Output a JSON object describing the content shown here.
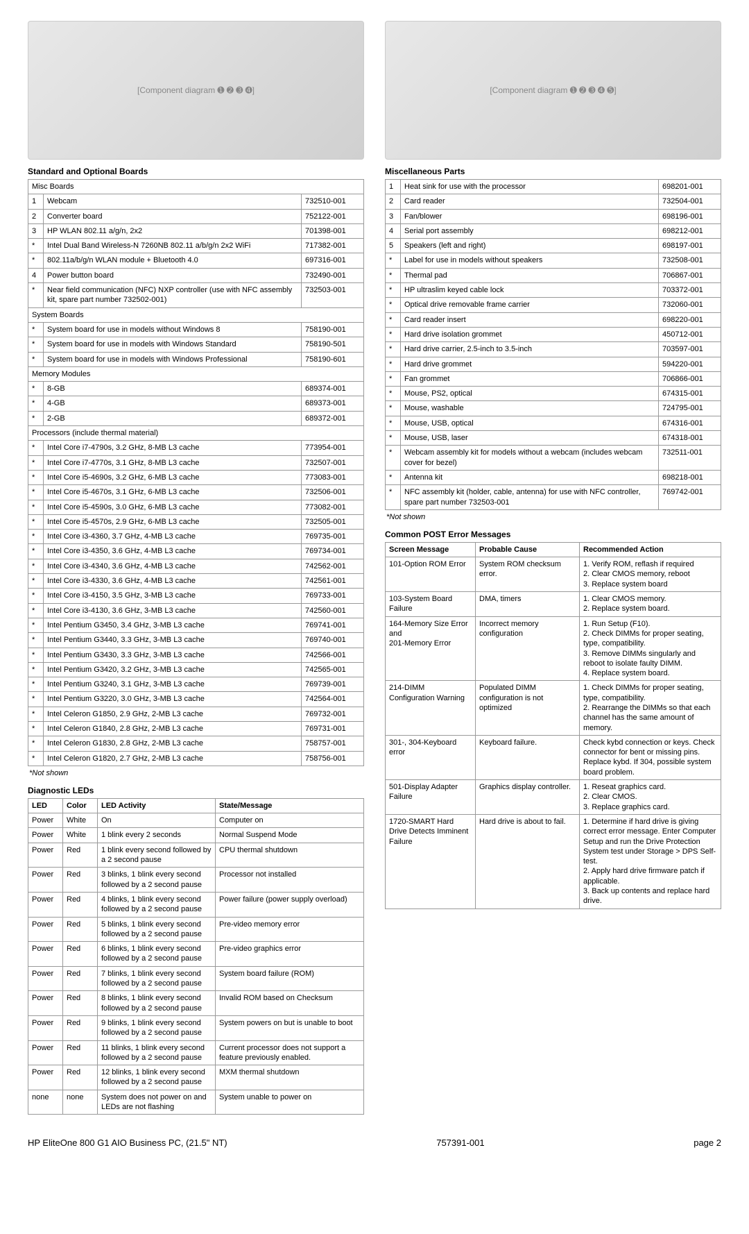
{
  "footer": {
    "left": "HP EliteOne 800 G1 AIO Business PC, (21.5\" NT)",
    "center": "757391-001",
    "right": "page 2"
  },
  "left": {
    "diagram_placeholder": "[Component diagram ➊ ➋ ➌ ➍]",
    "boards_title": "Standard and Optional Boards",
    "misc_header": "Misc Boards",
    "misc_rows": [
      [
        "1",
        "Webcam",
        "732510-001"
      ],
      [
        "2",
        "Converter board",
        "752122-001"
      ],
      [
        "3",
        "HP WLAN 802.11 a/g/n, 2x2",
        "701398-001"
      ],
      [
        "*",
        "Intel Dual Band Wireless-N 7260NB 802.11 a/b/g/n 2x2 WiFi",
        "717382-001"
      ],
      [
        "*",
        "802.11a/b/g/n WLAN module + Bluetooth 4.0",
        "697316-001"
      ],
      [
        "4",
        "Power button board",
        "732490-001"
      ],
      [
        "*",
        "Near field communication (NFC) NXP controller (use with NFC assembly kit, spare part number 732502-001)",
        "732503-001"
      ]
    ],
    "sys_header": "System Boards",
    "sys_rows": [
      [
        "*",
        "System board for use in models without Windows 8",
        "758190-001"
      ],
      [
        "*",
        "System board for use in models with Windows Standard",
        "758190-501"
      ],
      [
        "*",
        "System board for use in models with Windows Professional",
        "758190-601"
      ]
    ],
    "mem_header": "Memory Modules",
    "mem_rows": [
      [
        "*",
        "8-GB",
        "689374-001"
      ],
      [
        "*",
        "4-GB",
        "689373-001"
      ],
      [
        "*",
        "2-GB",
        "689372-001"
      ]
    ],
    "proc_header": "Processors (include thermal material)",
    "proc_rows": [
      [
        "*",
        "Intel Core i7-4790s, 3.2 GHz, 8-MB L3 cache",
        "773954-001"
      ],
      [
        "*",
        "Intel Core i7-4770s, 3.1 GHz, 8-MB L3 cache",
        "732507-001"
      ],
      [
        "*",
        "Intel Core i5-4690s, 3.2 GHz, 6-MB L3 cache",
        "773083-001"
      ],
      [
        "*",
        "Intel Core i5-4670s, 3.1 GHz, 6-MB L3 cache",
        "732506-001"
      ],
      [
        "*",
        "Intel Core i5-4590s, 3.0 GHz, 6-MB L3 cache",
        "773082-001"
      ],
      [
        "*",
        "Intel Core i5-4570s, 2.9 GHz, 6-MB L3 cache",
        "732505-001"
      ],
      [
        "*",
        "Intel Core i3-4360, 3.7 GHz, 4-MB L3 cache",
        "769735-001"
      ],
      [
        "*",
        "Intel Core i3-4350, 3.6 GHz, 4-MB L3 cache",
        "769734-001"
      ],
      [
        "*",
        "Intel Core i3-4340, 3.6 GHz, 4-MB L3 cache",
        "742562-001"
      ],
      [
        "*",
        "Intel Core i3-4330, 3.6 GHz, 4-MB L3 cache",
        "742561-001"
      ],
      [
        "*",
        "Intel Core i3-4150, 3.5 GHz, 3-MB L3 cache",
        "769733-001"
      ],
      [
        "*",
        "Intel Core i3-4130, 3.6 GHz, 3-MB L3 cache",
        "742560-001"
      ],
      [
        "*",
        "Intel Pentium G3450, 3.4 GHz, 3-MB L3 cache",
        "769741-001"
      ],
      [
        "*",
        "Intel Pentium G3440, 3.3 GHz, 3-MB L3 cache",
        "769740-001"
      ],
      [
        "*",
        "Intel Pentium G3430, 3.3 GHz, 3-MB L3 cache",
        "742566-001"
      ],
      [
        "*",
        "Intel Pentium G3420, 3.2 GHz, 3-MB L3 cache",
        "742565-001"
      ],
      [
        "*",
        "Intel Pentium G3240, 3.1 GHz, 3-MB L3 cache",
        "769739-001"
      ],
      [
        "*",
        "Intel Pentium G3220, 3.0 GHz, 3-MB L3 cache",
        "742564-001"
      ],
      [
        "*",
        "Intel Celeron G1850, 2.9 GHz, 2-MB L3 cache",
        "769732-001"
      ],
      [
        "*",
        "Intel Celeron G1840, 2.8 GHz, 2-MB L3 cache",
        "769731-001"
      ],
      [
        "*",
        "Intel Celeron G1830, 2.8 GHz, 2-MB L3 cache",
        "758757-001"
      ],
      [
        "*",
        "Intel Celeron G1820, 2.7 GHz, 2-MB L3 cache",
        "758756-001"
      ]
    ],
    "not_shown": "*Not shown",
    "leds_title": "Diagnostic LEDs",
    "leds_headers": [
      "LED",
      "Color",
      "LED Activity",
      "State/Message"
    ],
    "leds_rows": [
      [
        "Power",
        "White",
        "On",
        "Computer on"
      ],
      [
        "Power",
        "White",
        "1 blink every 2 seconds",
        "Normal Suspend Mode"
      ],
      [
        "Power",
        "Red",
        "1 blink every second followed by a 2 second pause",
        "CPU thermal shutdown"
      ],
      [
        "Power",
        "Red",
        "3 blinks, 1 blink every second followed by a 2 second pause",
        "Processor not installed"
      ],
      [
        "Power",
        "Red",
        "4 blinks, 1 blink every second followed by a 2 second pause",
        "Power failure (power supply overload)"
      ],
      [
        "Power",
        "Red",
        "5 blinks, 1 blink every second followed by a 2 second pause",
        "Pre-video memory error"
      ],
      [
        "Power",
        "Red",
        "6 blinks, 1 blink every second followed by a 2 second pause",
        "Pre-video graphics error"
      ],
      [
        "Power",
        "Red",
        "7 blinks, 1 blink every second followed by a 2 second pause",
        "System board failure (ROM)"
      ],
      [
        "Power",
        "Red",
        "8 blinks, 1 blink every second followed by a 2 second pause",
        "Invalid ROM based on Checksum"
      ],
      [
        "Power",
        "Red",
        "9 blinks, 1 blink every second followed by a 2 second pause",
        "System powers on but is unable to boot"
      ],
      [
        "Power",
        "Red",
        "11 blinks, 1 blink every second followed by a 2 second pause",
        "Current processor does not support a feature previously enabled."
      ],
      [
        "Power",
        "Red",
        "12 blinks, 1 blink every second followed by a 2 second pause",
        "MXM thermal shutdown"
      ],
      [
        "none",
        "none",
        "System does not power on and LEDs are not flashing",
        "System unable to power on"
      ]
    ]
  },
  "right": {
    "diagram_placeholder": "[Component diagram ➊ ➋ ➌ ➍ ➎]",
    "misc_title": "Miscellaneous Parts",
    "misc_rows": [
      [
        "1",
        "Heat sink for use with the processor",
        "698201-001"
      ],
      [
        "2",
        "Card reader",
        "732504-001"
      ],
      [
        "3",
        "Fan/blower",
        "698196-001"
      ],
      [
        "4",
        "Serial port assembly",
        "698212-001"
      ],
      [
        "5",
        "Speakers (left and right)",
        "698197-001"
      ],
      [
        "*",
        "Label for use in models without speakers",
        "732508-001"
      ],
      [
        "*",
        "Thermal pad",
        "706867-001"
      ],
      [
        "*",
        "HP ultraslim keyed cable lock",
        "703372-001"
      ],
      [
        "*",
        "Optical drive removable frame carrier",
        "732060-001"
      ],
      [
        "*",
        "Card reader insert",
        "698220-001"
      ],
      [
        "*",
        "Hard drive isolation grommet",
        "450712-001"
      ],
      [
        "*",
        "Hard drive carrier, 2.5-inch to 3.5-inch",
        "703597-001"
      ],
      [
        "*",
        "Hard drive grommet",
        "594220-001"
      ],
      [
        "*",
        "Fan grommet",
        "706866-001"
      ],
      [
        "*",
        "Mouse, PS2, optical",
        "674315-001"
      ],
      [
        "*",
        "Mouse, washable",
        "724795-001"
      ],
      [
        "*",
        "Mouse, USB, optical",
        "674316-001"
      ],
      [
        "*",
        "Mouse, USB, laser",
        "674318-001"
      ],
      [
        "*",
        "Webcam assembly kit for models without a webcam (includes webcam cover for bezel)",
        "732511-001"
      ],
      [
        "*",
        "Antenna kit",
        "698218-001"
      ],
      [
        "*",
        "NFC assembly kit (holder, cable, antenna) for use with NFC controller, spare part number 732503-001",
        "769742-001"
      ]
    ],
    "not_shown": "*Not shown",
    "post_title": "Common POST Error Messages",
    "post_headers": [
      "Screen Message",
      "Probable Cause",
      "Recommended Action"
    ],
    "post_rows": [
      [
        "101-Option ROM Error",
        "System ROM checksum error.",
        "1. Verify ROM, reflash if required\n2. Clear CMOS memory, reboot\n3. Replace system board"
      ],
      [
        "103-System Board Failure",
        "DMA, timers",
        "1. Clear CMOS memory.\n2. Replace system board."
      ],
      [
        "164-Memory Size Error and\n201-Memory Error",
        "Incorrect memory configuration",
        "1. Run Setup (F10).\n2. Check DIMMs for proper seating, type, compatibility.\n3. Remove DIMMs singularly and reboot to isolate faulty DIMM.\n4. Replace system board."
      ],
      [
        "214-DIMM Configuration Warning",
        "Populated DIMM configuration is not optimized",
        "1. Check DIMMs for proper seating, type, compatibility.\n2. Rearrange the DIMMs so that each channel has the same amount of memory."
      ],
      [
        "301-, 304-Keyboard error",
        "Keyboard failure.",
        "Check kybd connection or keys. Check connector for bent or missing pins. Replace kybd. If 304, possible system board problem."
      ],
      [
        "501-Display Adapter Failure",
        "Graphics display controller.",
        "1. Reseat graphics card.\n2. Clear CMOS.\n3. Replace graphics card."
      ],
      [
        "1720-SMART Hard Drive Detects Imminent Failure",
        "Hard drive is about to fail.",
        "1. Determine if hard drive is giving correct error message. Enter Computer Setup and run the Drive Protection System test under Storage > DPS Self-test.\n2. Apply hard drive firmware patch if applicable.\n3. Back up contents and replace hard drive."
      ]
    ]
  }
}
